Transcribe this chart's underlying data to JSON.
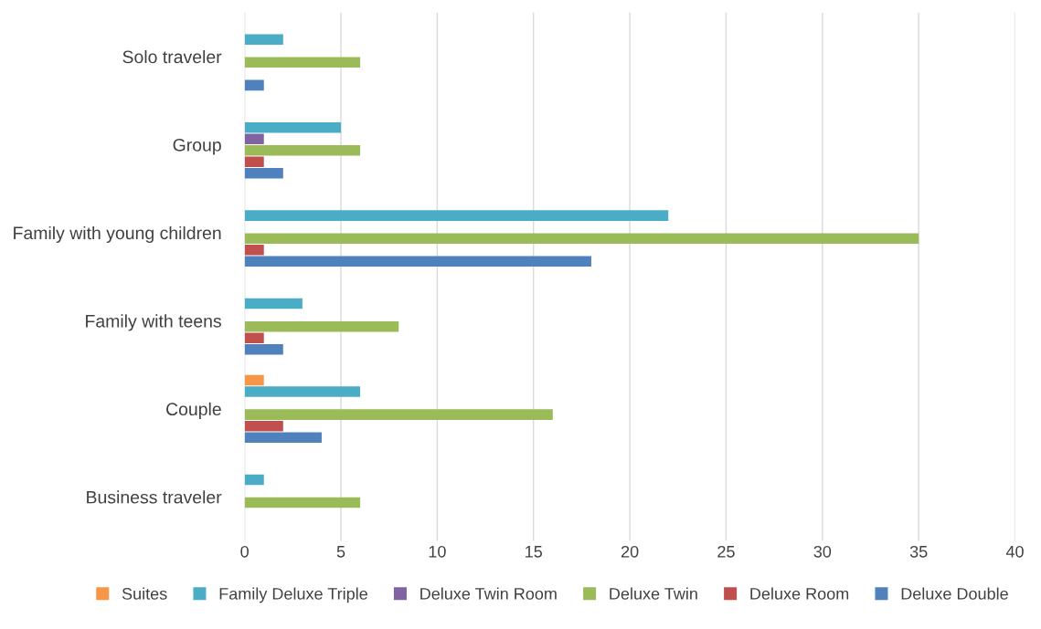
{
  "chart_data": {
    "type": "bar",
    "orientation": "horizontal",
    "categories": [
      "Solo traveler",
      "Group",
      "Family with young children",
      "Family with teens",
      "Couple",
      "Business traveler"
    ],
    "series": [
      {
        "name": "Suites",
        "color": "#f79646",
        "values": [
          null,
          null,
          null,
          null,
          1,
          null
        ]
      },
      {
        "name": "Family Deluxe Triple",
        "color": "#4bacc6",
        "values": [
          2,
          5,
          22,
          3,
          6,
          1
        ]
      },
      {
        "name": "Deluxe Twin Room",
        "color": "#8064a2",
        "values": [
          null,
          1,
          null,
          null,
          null,
          null
        ]
      },
      {
        "name": "Deluxe Twin",
        "color": "#9bbb59",
        "values": [
          6,
          6,
          35,
          8,
          16,
          6
        ]
      },
      {
        "name": "Deluxe Room",
        "color": "#c0504d",
        "values": [
          null,
          1,
          1,
          1,
          2,
          null
        ]
      },
      {
        "name": "Deluxe Double",
        "color": "#4f81bd",
        "values": [
          1,
          2,
          18,
          2,
          4,
          null
        ]
      }
    ],
    "xlim": [
      0,
      40
    ],
    "xticks": [
      0,
      5,
      10,
      15,
      20,
      25,
      30,
      35,
      40
    ],
    "grid": "x",
    "legend": "bottom"
  }
}
